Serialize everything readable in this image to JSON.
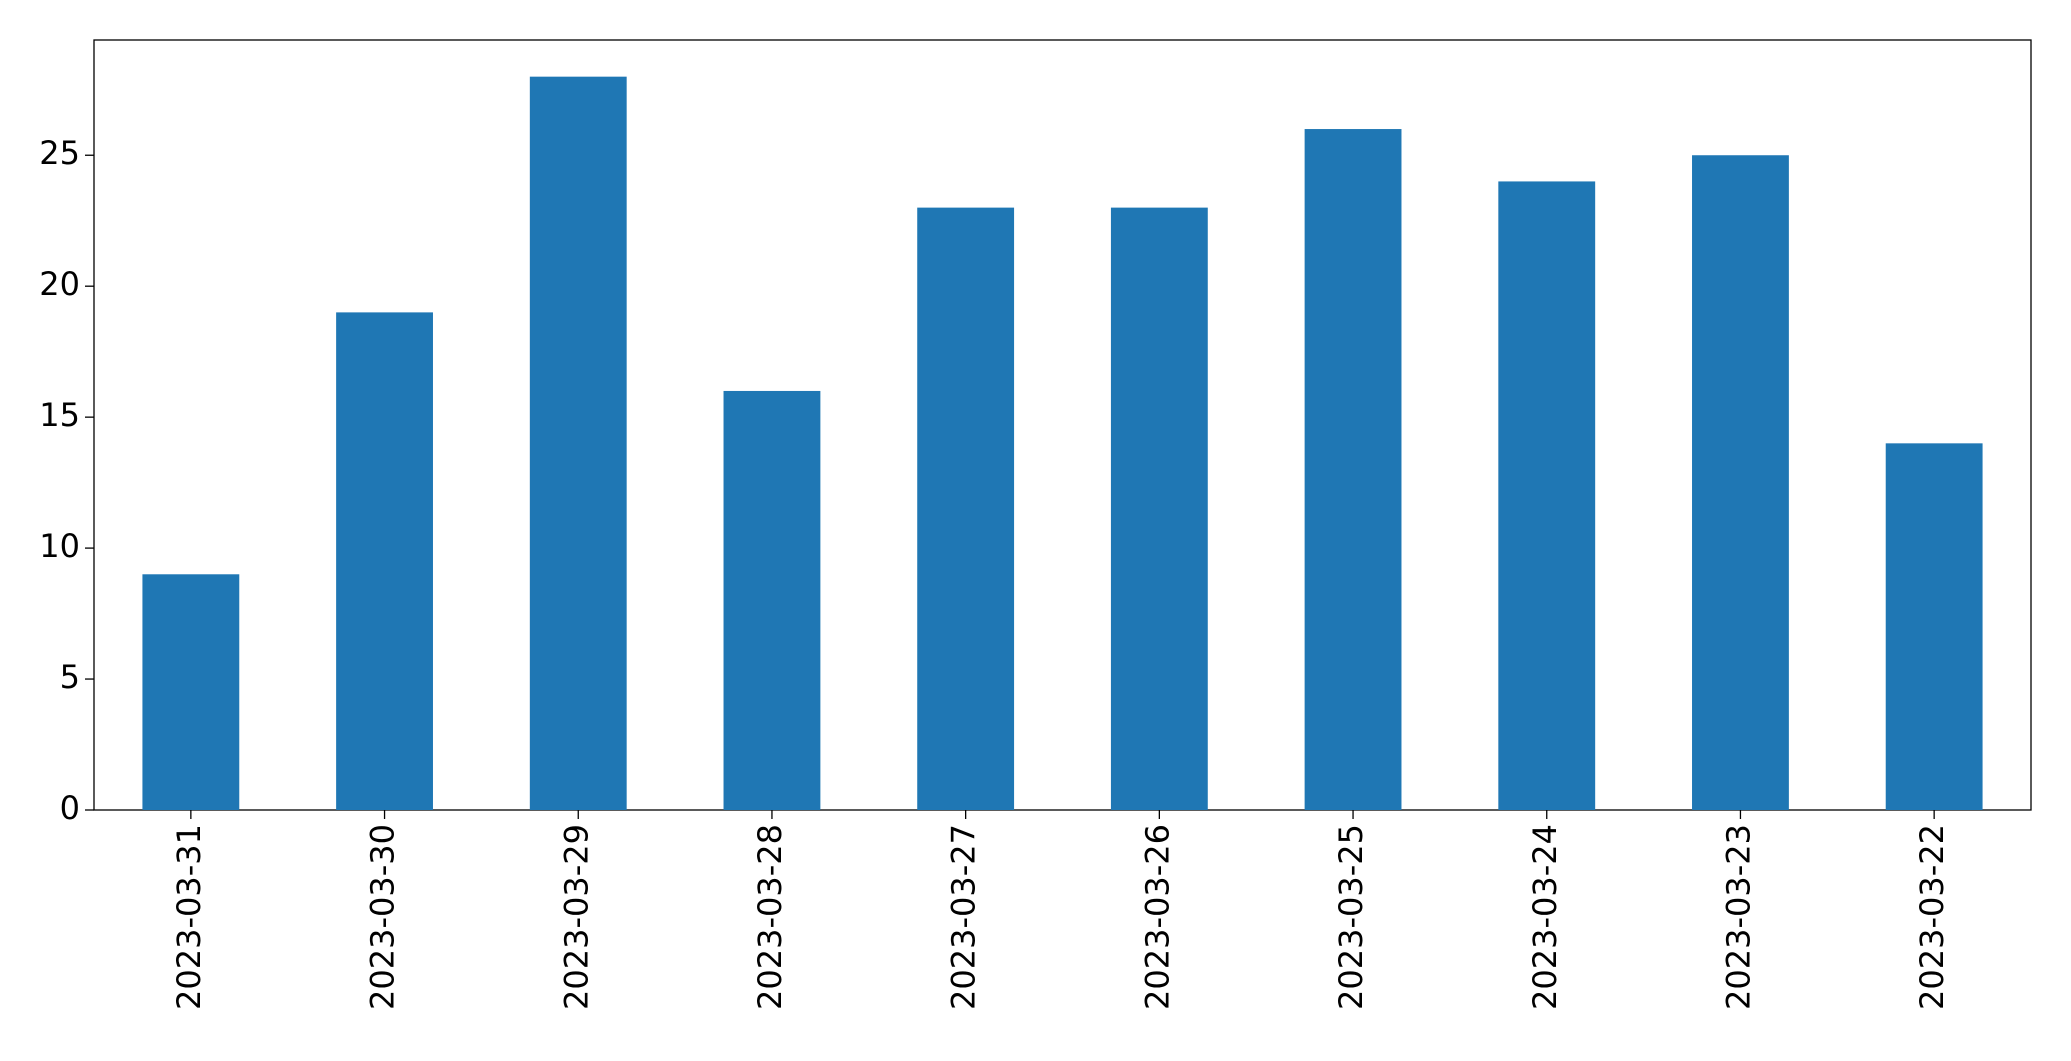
{
  "chart_data": {
    "type": "bar",
    "categories": [
      "2023-03-31",
      "2023-03-30",
      "2023-03-29",
      "2023-03-28",
      "2023-03-27",
      "2023-03-26",
      "2023-03-25",
      "2023-03-24",
      "2023-03-23",
      "2023-03-22"
    ],
    "values": [
      9,
      19,
      28,
      16,
      23,
      23,
      26,
      24,
      25,
      14
    ],
    "color": "#1f77b4",
    "ylim": [
      0,
      29.4
    ],
    "yticks": [
      0,
      5,
      10,
      15,
      20,
      25
    ],
    "grid": false
  }
}
